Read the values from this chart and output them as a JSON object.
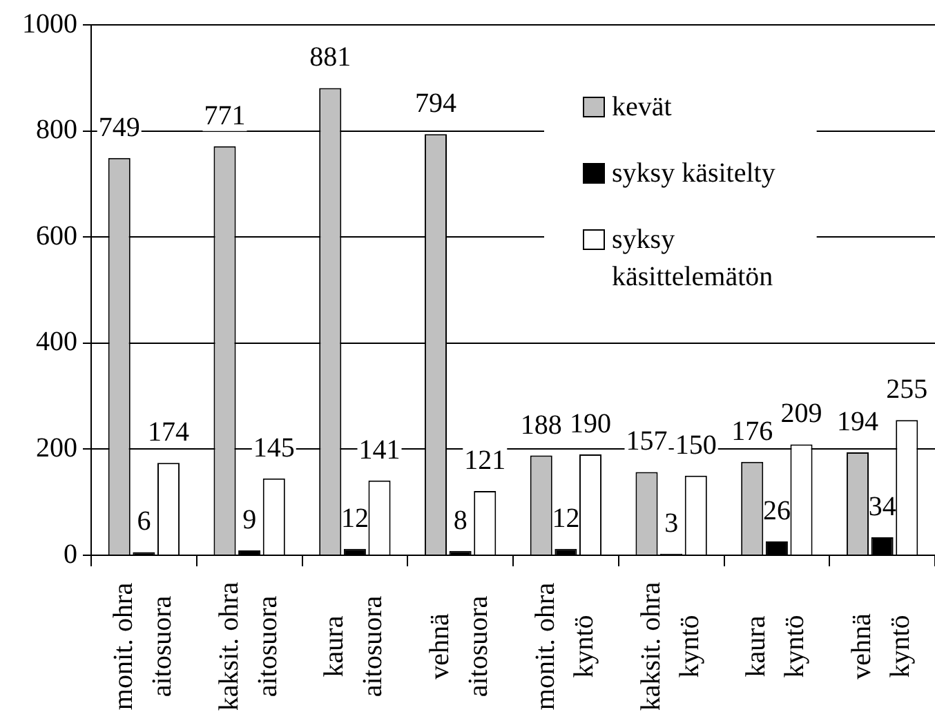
{
  "chart_data": {
    "type": "bar",
    "categories": [
      "monit. ohra\naitosuora",
      "kaksit. ohra\naitosuora",
      "kaura\naitosuora",
      "vehnä\naitosuora",
      "monit. ohra\nkyntö",
      "kaksit. ohra\nkyntö",
      "kaura\nkyntö",
      "vehnä\nkyntö"
    ],
    "series": [
      {
        "name": "kevät",
        "color": "#c0c0c0",
        "values": [
          749,
          771,
          881,
          794,
          188,
          157,
          176,
          194
        ]
      },
      {
        "name": "syksy käsitelty",
        "color": "#000000",
        "values": [
          6,
          9,
          12,
          8,
          12,
          3,
          26,
          34
        ]
      },
      {
        "name": "syksy käsittelemätön",
        "color": "#ffffff",
        "values": [
          174,
          145,
          141,
          121,
          190,
          150,
          209,
          255
        ]
      }
    ],
    "ylim": [
      0,
      1000
    ],
    "yticks": [
      0,
      200,
      400,
      600,
      800,
      1000
    ],
    "grid": "y",
    "legend": "top right",
    "data_labels": true
  }
}
